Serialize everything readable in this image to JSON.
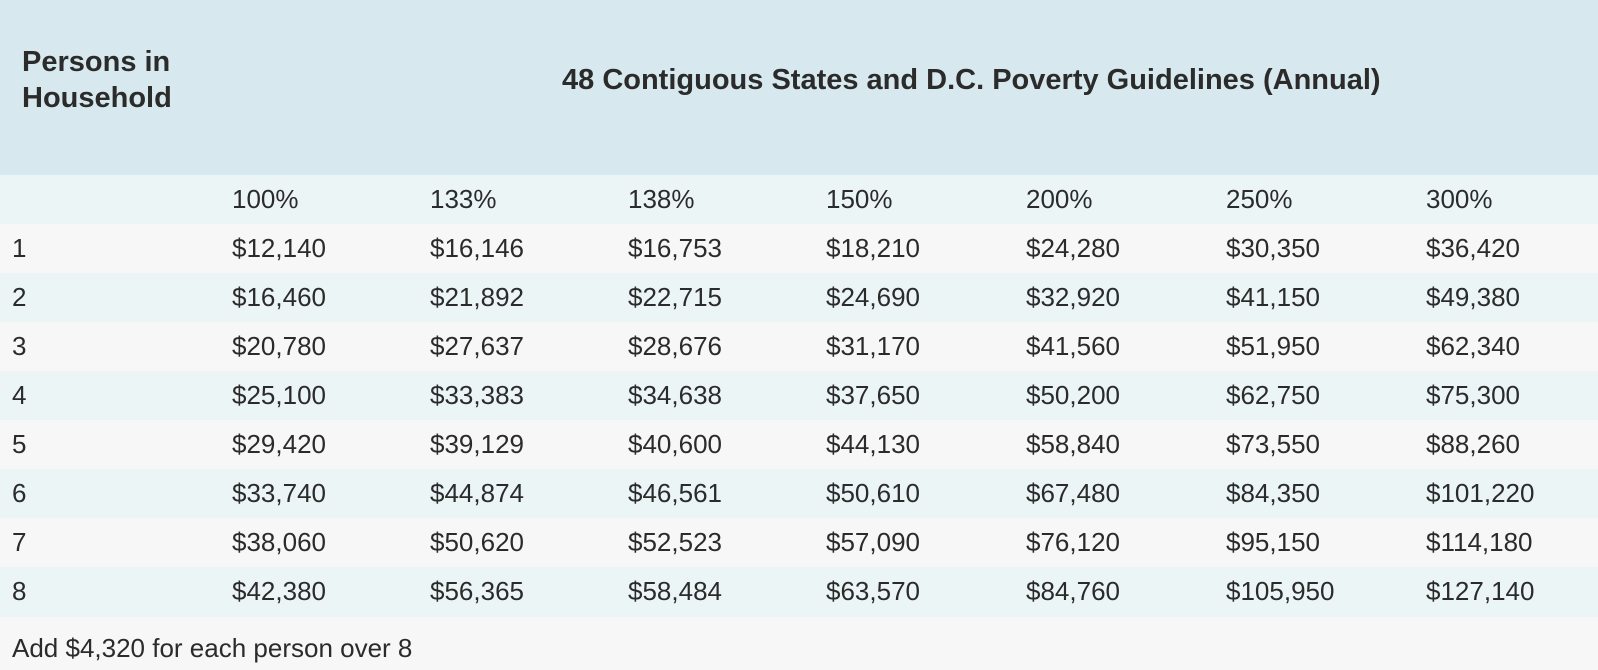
{
  "header": {
    "persons_label": "Persons in Household",
    "title": "48 Contiguous States and D.C. Poverty Guidelines (Annual)"
  },
  "columns": [
    "100%",
    "133%",
    "138%",
    "150%",
    "200%",
    "250%",
    "300%"
  ],
  "rows": [
    {
      "persons": "1",
      "values": [
        "$12,140",
        "$16,146",
        "$16,753",
        "$18,210",
        "$24,280",
        "$30,350",
        "$36,420"
      ]
    },
    {
      "persons": "2",
      "values": [
        "$16,460",
        "$21,892",
        "$22,715",
        "$24,690",
        "$32,920",
        "$41,150",
        "$49,380"
      ]
    },
    {
      "persons": "3",
      "values": [
        "$20,780",
        "$27,637",
        "$28,676",
        "$31,170",
        "$41,560",
        "$51,950",
        "$62,340"
      ]
    },
    {
      "persons": "4",
      "values": [
        "$25,100",
        "$33,383",
        "$34,638",
        "$37,650",
        "$50,200",
        "$62,750",
        "$75,300"
      ]
    },
    {
      "persons": "5",
      "values": [
        "$29,420",
        "$39,129",
        "$40,600",
        "$44,130",
        "$58,840",
        "$73,550",
        "$88,260"
      ]
    },
    {
      "persons": "6",
      "values": [
        "$33,740",
        "$44,874",
        "$46,561",
        "$50,610",
        "$67,480",
        "$84,350",
        "$101,220"
      ]
    },
    {
      "persons": "7",
      "values": [
        "$38,060",
        "$50,620",
        "$52,523",
        "$57,090",
        "$76,120",
        "$95,150",
        "$114,180"
      ]
    },
    {
      "persons": "8",
      "values": [
        "$42,380",
        "$56,365",
        "$58,484",
        "$63,570",
        "$84,760",
        "$105,950",
        "$127,140"
      ]
    }
  ],
  "footnote": "Add $4,320 for each person over 8",
  "colors": {
    "header_bg": "#d7e9ee",
    "alt_row_bg": "#ecf5f5",
    "row_bg": "#f7f7f7",
    "text": "#2b2b2b"
  }
}
